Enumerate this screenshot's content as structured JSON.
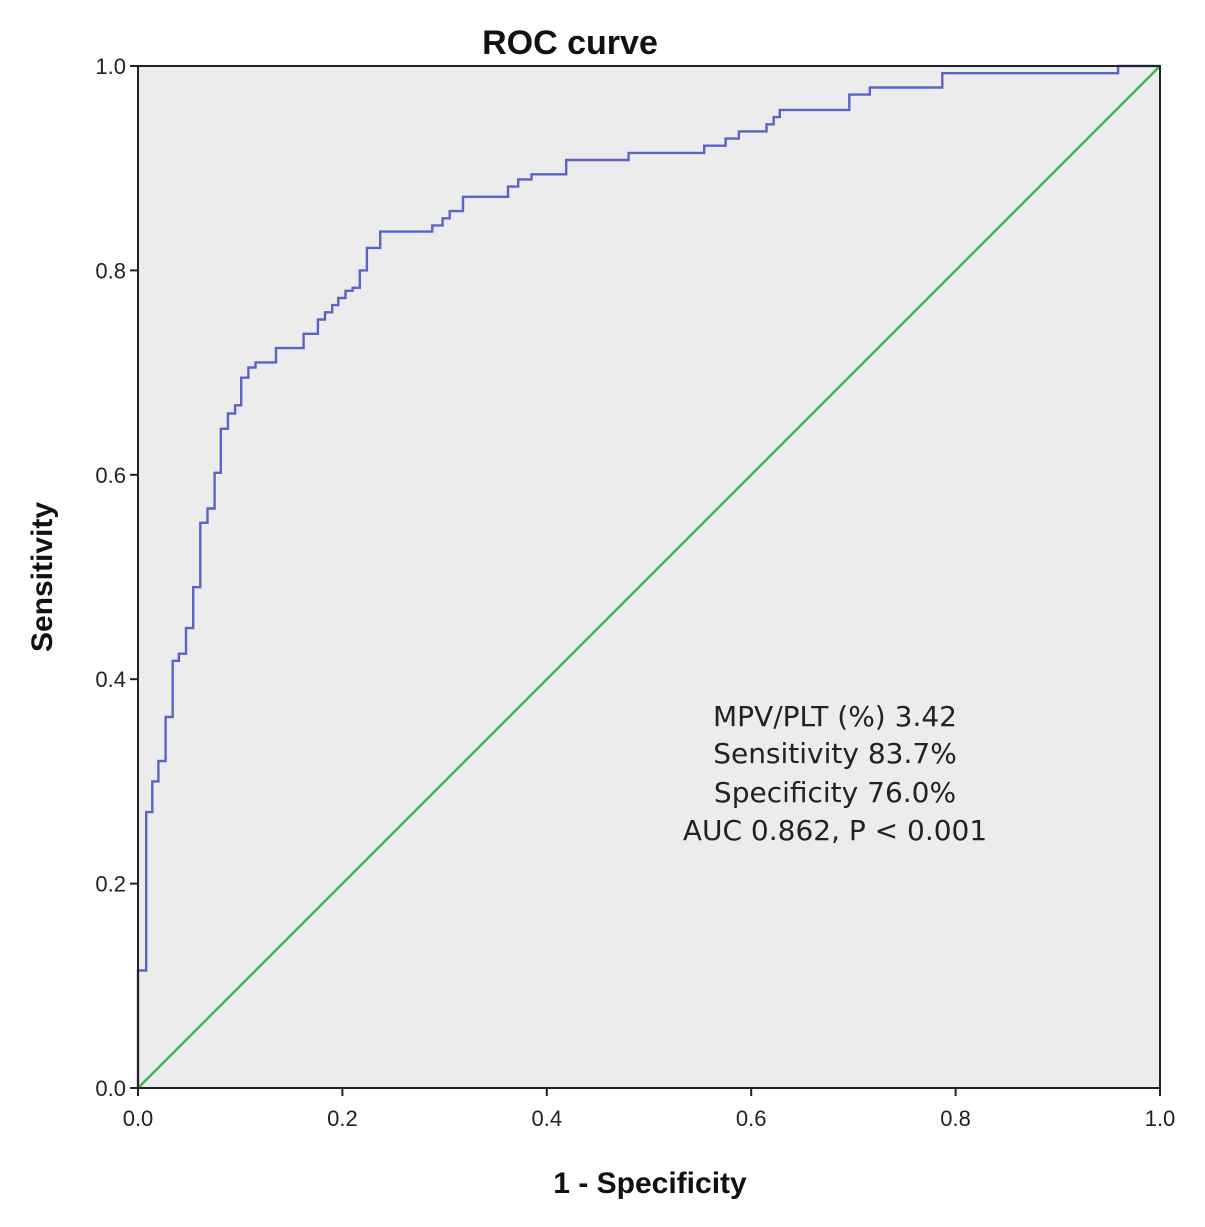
{
  "chart_data": {
    "type": "line",
    "title": "ROC curve",
    "xlabel": "1 - Specificity",
    "ylabel": "Sensitivity",
    "xlim": [
      0.0,
      1.0
    ],
    "ylim": [
      0.0,
      1.0
    ],
    "x_ticks": [
      "0.0",
      "0.2",
      "0.4",
      "0.6",
      "0.8",
      "1.0"
    ],
    "y_ticks": [
      "0.0",
      "0.2",
      "0.4",
      "0.6",
      "0.8",
      "1.0"
    ],
    "grid": false,
    "background": "#ececec",
    "series": [
      {
        "color": "#5a64c8",
        "style": "step",
        "points": [
          [
            0.0,
            0.0
          ],
          [
            0.0,
            0.115
          ],
          [
            0.008,
            0.115
          ],
          [
            0.008,
            0.27
          ],
          [
            0.014,
            0.27
          ],
          [
            0.014,
            0.3
          ],
          [
            0.02,
            0.3
          ],
          [
            0.02,
            0.32
          ],
          [
            0.027,
            0.32
          ],
          [
            0.027,
            0.363
          ],
          [
            0.034,
            0.363
          ],
          [
            0.034,
            0.418
          ],
          [
            0.04,
            0.418
          ],
          [
            0.04,
            0.425
          ],
          [
            0.047,
            0.425
          ],
          [
            0.047,
            0.45
          ],
          [
            0.054,
            0.45
          ],
          [
            0.054,
            0.49
          ],
          [
            0.061,
            0.49
          ],
          [
            0.061,
            0.553
          ],
          [
            0.068,
            0.553
          ],
          [
            0.068,
            0.567
          ],
          [
            0.075,
            0.567
          ],
          [
            0.075,
            0.602
          ],
          [
            0.081,
            0.602
          ],
          [
            0.081,
            0.645
          ],
          [
            0.088,
            0.645
          ],
          [
            0.088,
            0.66
          ],
          [
            0.095,
            0.66
          ],
          [
            0.095,
            0.668
          ],
          [
            0.101,
            0.668
          ],
          [
            0.101,
            0.695
          ],
          [
            0.108,
            0.695
          ],
          [
            0.108,
            0.705
          ],
          [
            0.115,
            0.705
          ],
          [
            0.115,
            0.71
          ],
          [
            0.135,
            0.71
          ],
          [
            0.135,
            0.724
          ],
          [
            0.162,
            0.724
          ],
          [
            0.162,
            0.738
          ],
          [
            0.176,
            0.738
          ],
          [
            0.176,
            0.752
          ],
          [
            0.183,
            0.752
          ],
          [
            0.183,
            0.759
          ],
          [
            0.19,
            0.759
          ],
          [
            0.19,
            0.766
          ],
          [
            0.196,
            0.766
          ],
          [
            0.196,
            0.773
          ],
          [
            0.203,
            0.773
          ],
          [
            0.203,
            0.78
          ],
          [
            0.21,
            0.78
          ],
          [
            0.21,
            0.783
          ],
          [
            0.217,
            0.783
          ],
          [
            0.217,
            0.8
          ],
          [
            0.224,
            0.8
          ],
          [
            0.224,
            0.822
          ],
          [
            0.237,
            0.822
          ],
          [
            0.237,
            0.838
          ],
          [
            0.288,
            0.838
          ],
          [
            0.288,
            0.844
          ],
          [
            0.298,
            0.844
          ],
          [
            0.298,
            0.851
          ],
          [
            0.305,
            0.851
          ],
          [
            0.305,
            0.858
          ],
          [
            0.318,
            0.858
          ],
          [
            0.318,
            0.872
          ],
          [
            0.362,
            0.872
          ],
          [
            0.362,
            0.882
          ],
          [
            0.372,
            0.882
          ],
          [
            0.372,
            0.889
          ],
          [
            0.385,
            0.889
          ],
          [
            0.385,
            0.894
          ],
          [
            0.419,
            0.894
          ],
          [
            0.419,
            0.908
          ],
          [
            0.48,
            0.908
          ],
          [
            0.48,
            0.915
          ],
          [
            0.554,
            0.915
          ],
          [
            0.554,
            0.922
          ],
          [
            0.575,
            0.922
          ],
          [
            0.575,
            0.929
          ],
          [
            0.588,
            0.929
          ],
          [
            0.588,
            0.936
          ],
          [
            0.615,
            0.936
          ],
          [
            0.615,
            0.943
          ],
          [
            0.622,
            0.943
          ],
          [
            0.622,
            0.95
          ],
          [
            0.628,
            0.95
          ],
          [
            0.628,
            0.957
          ],
          [
            0.696,
            0.957
          ],
          [
            0.696,
            0.972
          ],
          [
            0.716,
            0.972
          ],
          [
            0.716,
            0.979
          ],
          [
            0.787,
            0.979
          ],
          [
            0.787,
            0.993
          ],
          [
            0.959,
            0.993
          ],
          [
            0.959,
            1.0
          ],
          [
            1.0,
            1.0
          ]
        ]
      },
      {
        "color": "#3cb455",
        "style": "line",
        "points": [
          [
            0.0,
            0.0
          ],
          [
            1.0,
            1.0
          ]
        ]
      }
    ],
    "annotations": [
      "MPV/PLT (%) 3.42",
      "Sensitivity 83.7%",
      "Specificity 76.0%",
      "AUC 0.862, P < 0.001"
    ]
  }
}
